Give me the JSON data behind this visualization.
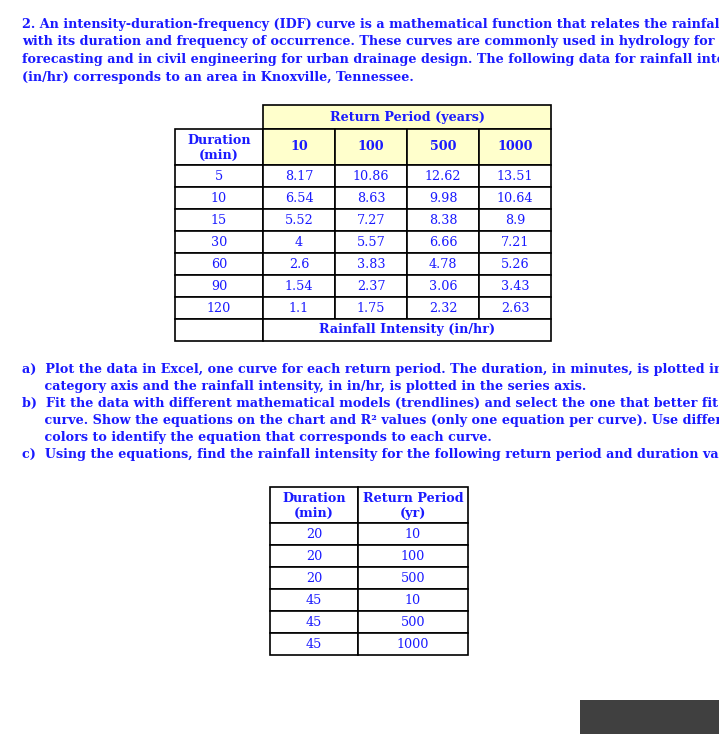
{
  "intro_text_lines": [
    "2. An intensity-duration-frequency (IDF) curve is a mathematical function that relates the rainfall intensity",
    "with its duration and frequency of occurrence. These curves are commonly used in hydrology for flood",
    "forecasting and in civil engineering for urban drainage design. The following data for rainfall intensity",
    "(in/hr) corresponds to an area in Knoxville, Tennessee."
  ],
  "table1_header_top": "Return Period (years)",
  "table1_col_headers_line1": [
    "Duration",
    "10",
    "100",
    "500",
    "1000"
  ],
  "table1_col_headers_line2": [
    "(min)",
    "",
    "",
    "",
    ""
  ],
  "table1_data": [
    [
      "5",
      "8.17",
      "10.86",
      "12.62",
      "13.51"
    ],
    [
      "10",
      "6.54",
      "8.63",
      "9.98",
      "10.64"
    ],
    [
      "15",
      "5.52",
      "7.27",
      "8.38",
      "8.9"
    ],
    [
      "30",
      "4",
      "5.57",
      "6.66",
      "7.21"
    ],
    [
      "60",
      "2.6",
      "3.83",
      "4.78",
      "5.26"
    ],
    [
      "90",
      "1.54",
      "2.37",
      "3.06",
      "3.43"
    ],
    [
      "120",
      "1.1",
      "1.75",
      "2.32",
      "2.63"
    ]
  ],
  "table1_footer": "Rainfall Intensity (in/hr)",
  "part_a_lines": [
    "a)  Plot the data in Excel, one curve for each return period. The duration, in minutes, is plotted in the",
    "     category axis and the rainfall intensity, in in/hr, is plotted in the series axis."
  ],
  "part_b_lines": [
    "b)  Fit the data with different mathematical models (trendlines) and select the one that better fit each",
    "     curve. Show the equations on the chart and R² values (only one equation per curve). Use different",
    "     colors to identify the equation that corresponds to each curve."
  ],
  "part_c_lines": [
    "c)  Using the equations, find the rainfall intensity for the following return period and duration values:"
  ],
  "table2_header1": "Duration",
  "table2_header1b": "(min)",
  "table2_header2": "Return Period",
  "table2_header2b": "(yr)",
  "table2_data": [
    [
      "20",
      "10"
    ],
    [
      "20",
      "100"
    ],
    [
      "20",
      "500"
    ],
    [
      "45",
      "10"
    ],
    [
      "45",
      "500"
    ],
    [
      "45",
      "1000"
    ]
  ],
  "bg_color": "#ffffff",
  "text_color": "#1a1aff",
  "table_text_color": "#1a1aff",
  "header_yellow": "#ffffcc",
  "font_size_text": 9.2,
  "font_size_table": 9.2,
  "lw": 1.2
}
